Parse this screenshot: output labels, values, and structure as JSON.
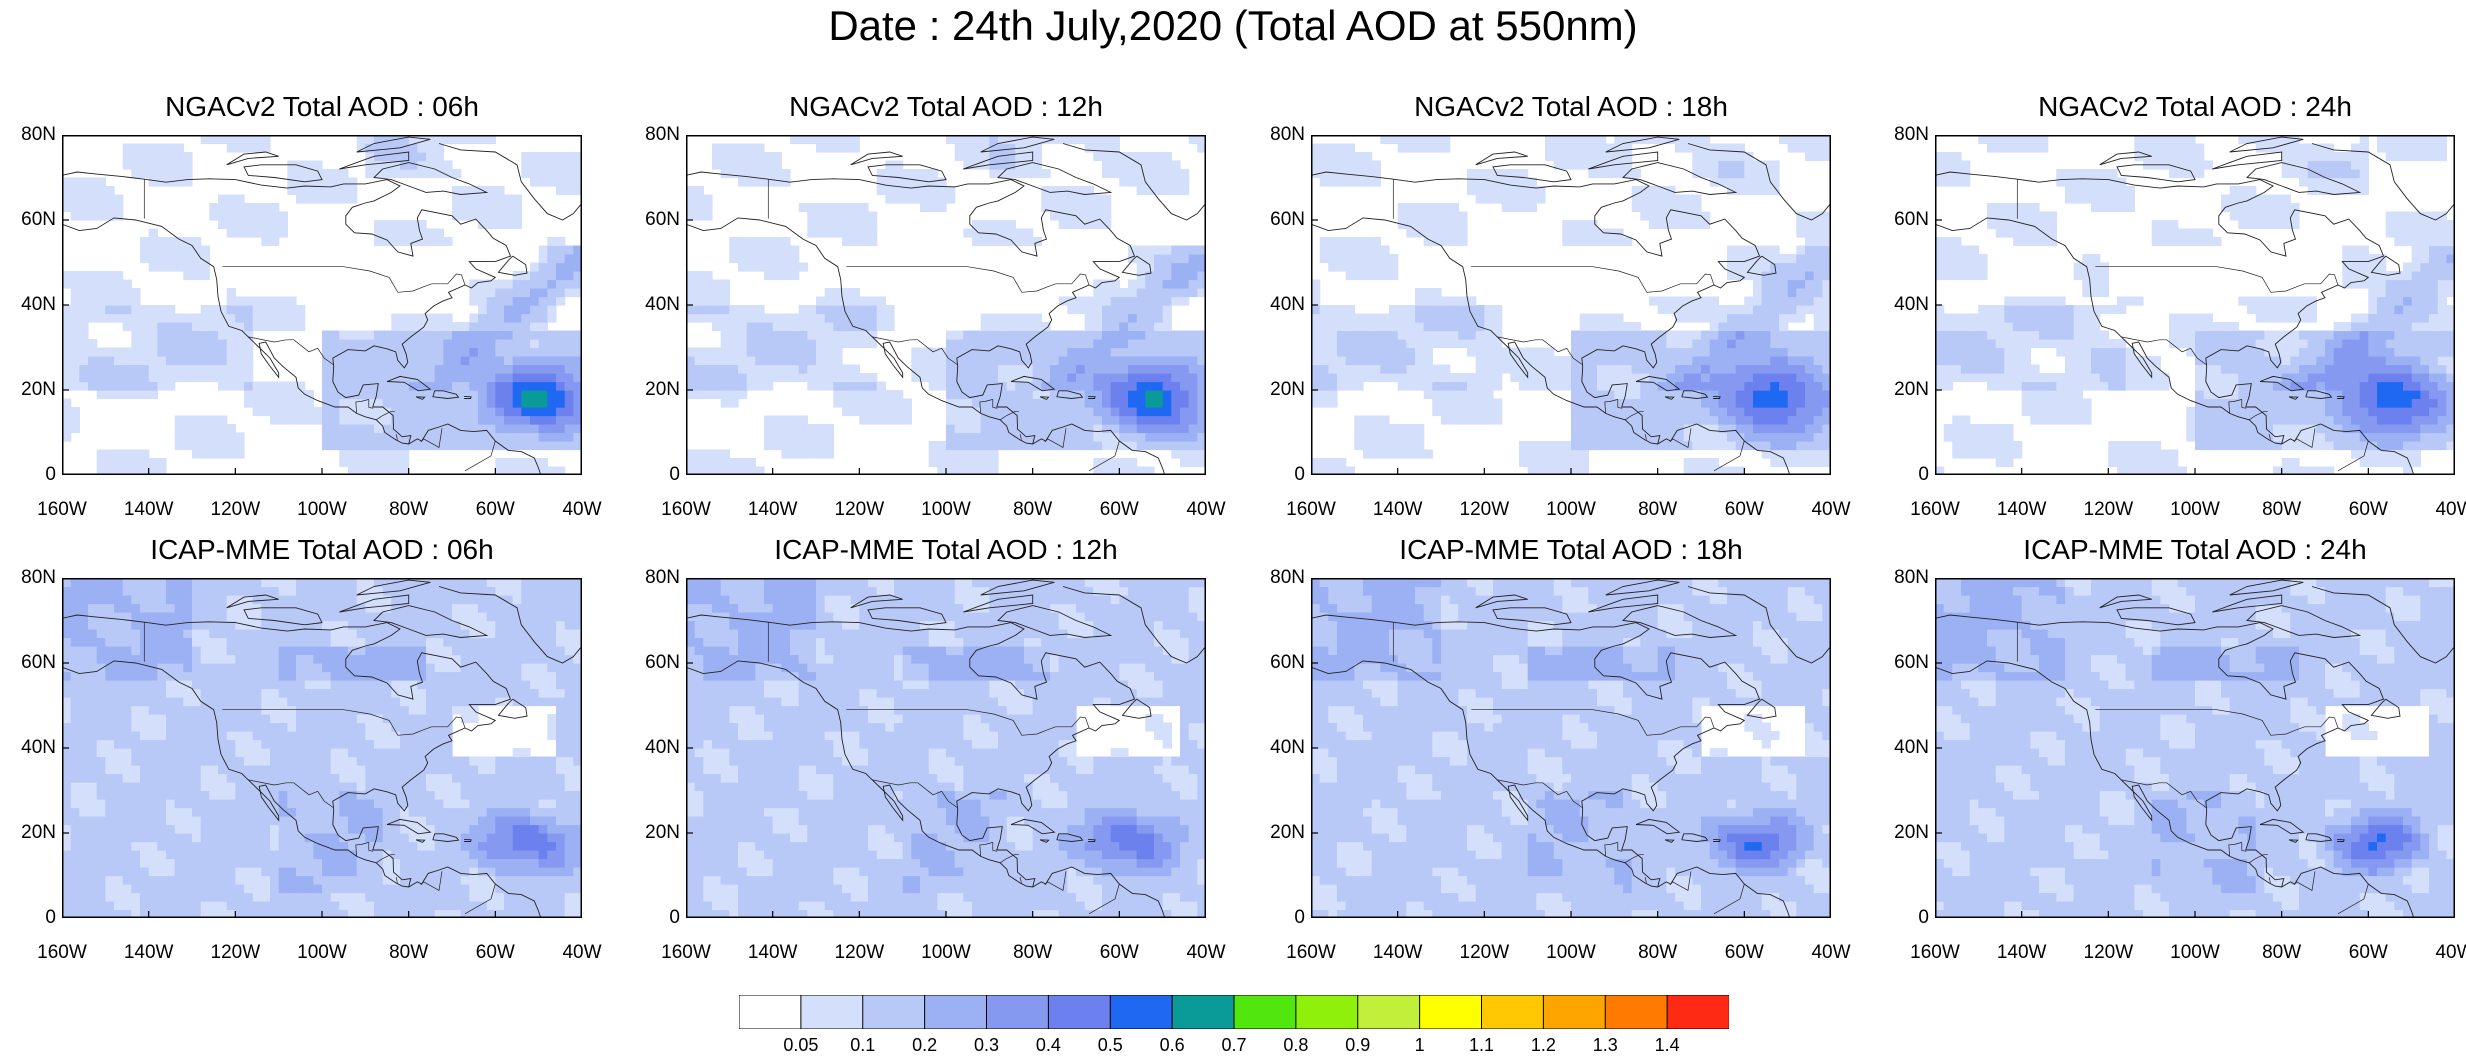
{
  "title": "Date : 24th July,2020 (Total AOD at 550nm)",
  "panels": [
    {
      "title": "NGACv2 Total AOD : 06h",
      "model": "NGACv2",
      "hour": "06h"
    },
    {
      "title": "NGACv2 Total AOD : 12h",
      "model": "NGACv2",
      "hour": "12h"
    },
    {
      "title": "NGACv2 Total AOD : 18h",
      "model": "NGACv2",
      "hour": "18h"
    },
    {
      "title": "NGACv2 Total AOD : 24h",
      "model": "NGACv2",
      "hour": "24h"
    },
    {
      "title": "ICAP-MME Total AOD : 06h",
      "model": "ICAP-MME",
      "hour": "06h"
    },
    {
      "title": "ICAP-MME Total AOD : 12h",
      "model": "ICAP-MME",
      "hour": "12h"
    },
    {
      "title": "ICAP-MME Total AOD : 18h",
      "model": "ICAP-MME",
      "hour": "18h"
    },
    {
      "title": "ICAP-MME Total AOD : 24h",
      "model": "ICAP-MME",
      "hour": "24h"
    }
  ],
  "axes": {
    "lat_labels": [
      "0",
      "20N",
      "40N",
      "60N",
      "80N"
    ],
    "lon_labels": [
      "160W",
      "140W",
      "120W",
      "100W",
      "80W",
      "60W",
      "40W"
    ],
    "lat_range": [
      0,
      80
    ],
    "lon_range": [
      -160,
      -40
    ]
  },
  "colorbar": {
    "labels": [
      "0.05",
      "0.1",
      "0.2",
      "0.3",
      "0.4",
      "0.5",
      "0.6",
      "0.7",
      "0.8",
      "0.9",
      "1",
      "1.1",
      "1.2",
      "1.3",
      "1.4"
    ],
    "colors": [
      "#ffffff",
      "#d4dffb",
      "#b8c8f7",
      "#9cb1f4",
      "#8599f1",
      "#6c80ee",
      "#1f68f2",
      "#0a9a98",
      "#52e60f",
      "#8ef00b",
      "#c2f03a",
      "#ffff00",
      "#ffc800",
      "#ffa500",
      "#ff7a00",
      "#ff2a14"
    ]
  }
}
